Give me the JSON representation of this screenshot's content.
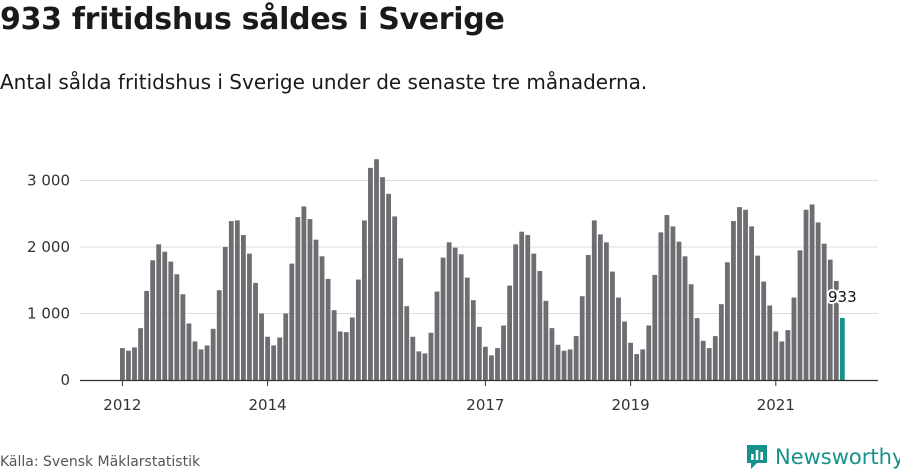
{
  "source": "Källa: Svensk Mäklarstatistik",
  "brand": {
    "name": "Newsworthy",
    "icon": "newsworthy-logo-icon",
    "color": "#16928a"
  },
  "colors": {
    "bar": "#6e6d72",
    "highlight": "#16928a",
    "grid": "#dddddd",
    "axis": "#333333"
  },
  "chart_data": {
    "type": "bar",
    "title": "933 fritidshus såldes i Sverige",
    "subtitle": "Antal sålda fritidshus i Sverige under de senaste tre månaderna.",
    "xlabel": "",
    "ylabel": "",
    "ylim": [
      0,
      3500
    ],
    "yticks": [
      0,
      1000,
      2000,
      3000
    ],
    "ytick_labels": [
      "0",
      "1 000",
      "2 000",
      "3 000"
    ],
    "grid": true,
    "legend": "none",
    "xtick_labels": [
      {
        "label": "2012",
        "index": 0
      },
      {
        "label": "2014",
        "index": 24
      },
      {
        "label": "2017",
        "index": 60
      },
      {
        "label": "2019",
        "index": 84
      },
      {
        "label": "2021",
        "index": 108
      }
    ],
    "highlight": {
      "index": 119,
      "label": "933"
    },
    "values": [
      480,
      440,
      490,
      780,
      1340,
      1800,
      2040,
      1930,
      1780,
      1590,
      1290,
      850,
      580,
      460,
      520,
      770,
      1350,
      2000,
      2390,
      2400,
      2180,
      1900,
      1460,
      1000,
      650,
      520,
      640,
      1000,
      1750,
      2450,
      2610,
      2420,
      2110,
      1860,
      1520,
      1050,
      730,
      720,
      940,
      1510,
      2400,
      3190,
      3320,
      3050,
      2800,
      2460,
      1830,
      1110,
      650,
      430,
      400,
      710,
      1330,
      1840,
      2070,
      1990,
      1890,
      1540,
      1200,
      800,
      500,
      370,
      480,
      820,
      1420,
      2040,
      2230,
      2180,
      1900,
      1640,
      1190,
      780,
      530,
      440,
      460,
      660,
      1260,
      1880,
      2400,
      2190,
      2070,
      1630,
      1240,
      880,
      560,
      390,
      460,
      820,
      1580,
      2220,
      2480,
      2310,
      2080,
      1860,
      1440,
      930,
      590,
      480,
      660,
      1140,
      1770,
      2390,
      2600,
      2560,
      2310,
      1870,
      1480,
      1120,
      730,
      580,
      750,
      1240,
      1950,
      2560,
      2640,
      2370,
      2050,
      1810,
      1490,
      933
    ]
  }
}
